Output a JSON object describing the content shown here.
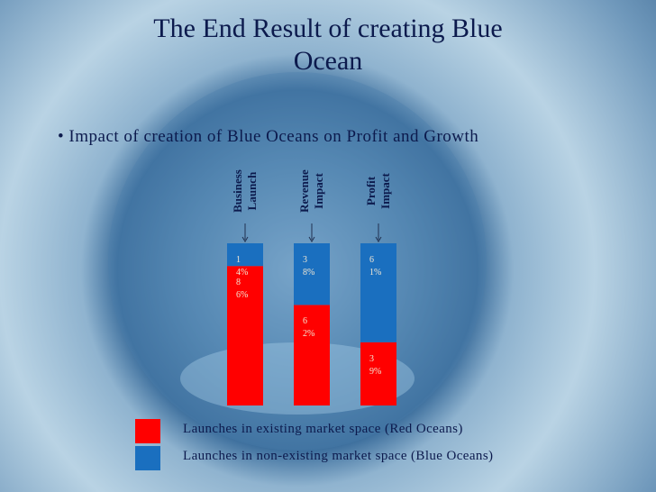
{
  "title": "The End Result of creating Blue Ocean",
  "bullet": "Impact of creation of Blue Oceans on Profit and Growth",
  "chart_data": {
    "type": "stacked_bar",
    "categories": [
      "Business Launch",
      "Revenue Impact",
      "Profit Impact"
    ],
    "ylim": [
      0,
      100
    ],
    "series": [
      {
        "name": "Launches in existing market space (Red Oceans)",
        "color": "#ff0000",
        "values": [
          86,
          62,
          39
        ],
        "value_labels": [
          "86%",
          "62%",
          "39%"
        ]
      },
      {
        "name": "Launches in non-existing market space (Blue Oceans)",
        "color": "#1a6fbf",
        "values": [
          14,
          38,
          61
        ],
        "value_labels": [
          "14%",
          "38%",
          "61%"
        ]
      }
    ]
  }
}
